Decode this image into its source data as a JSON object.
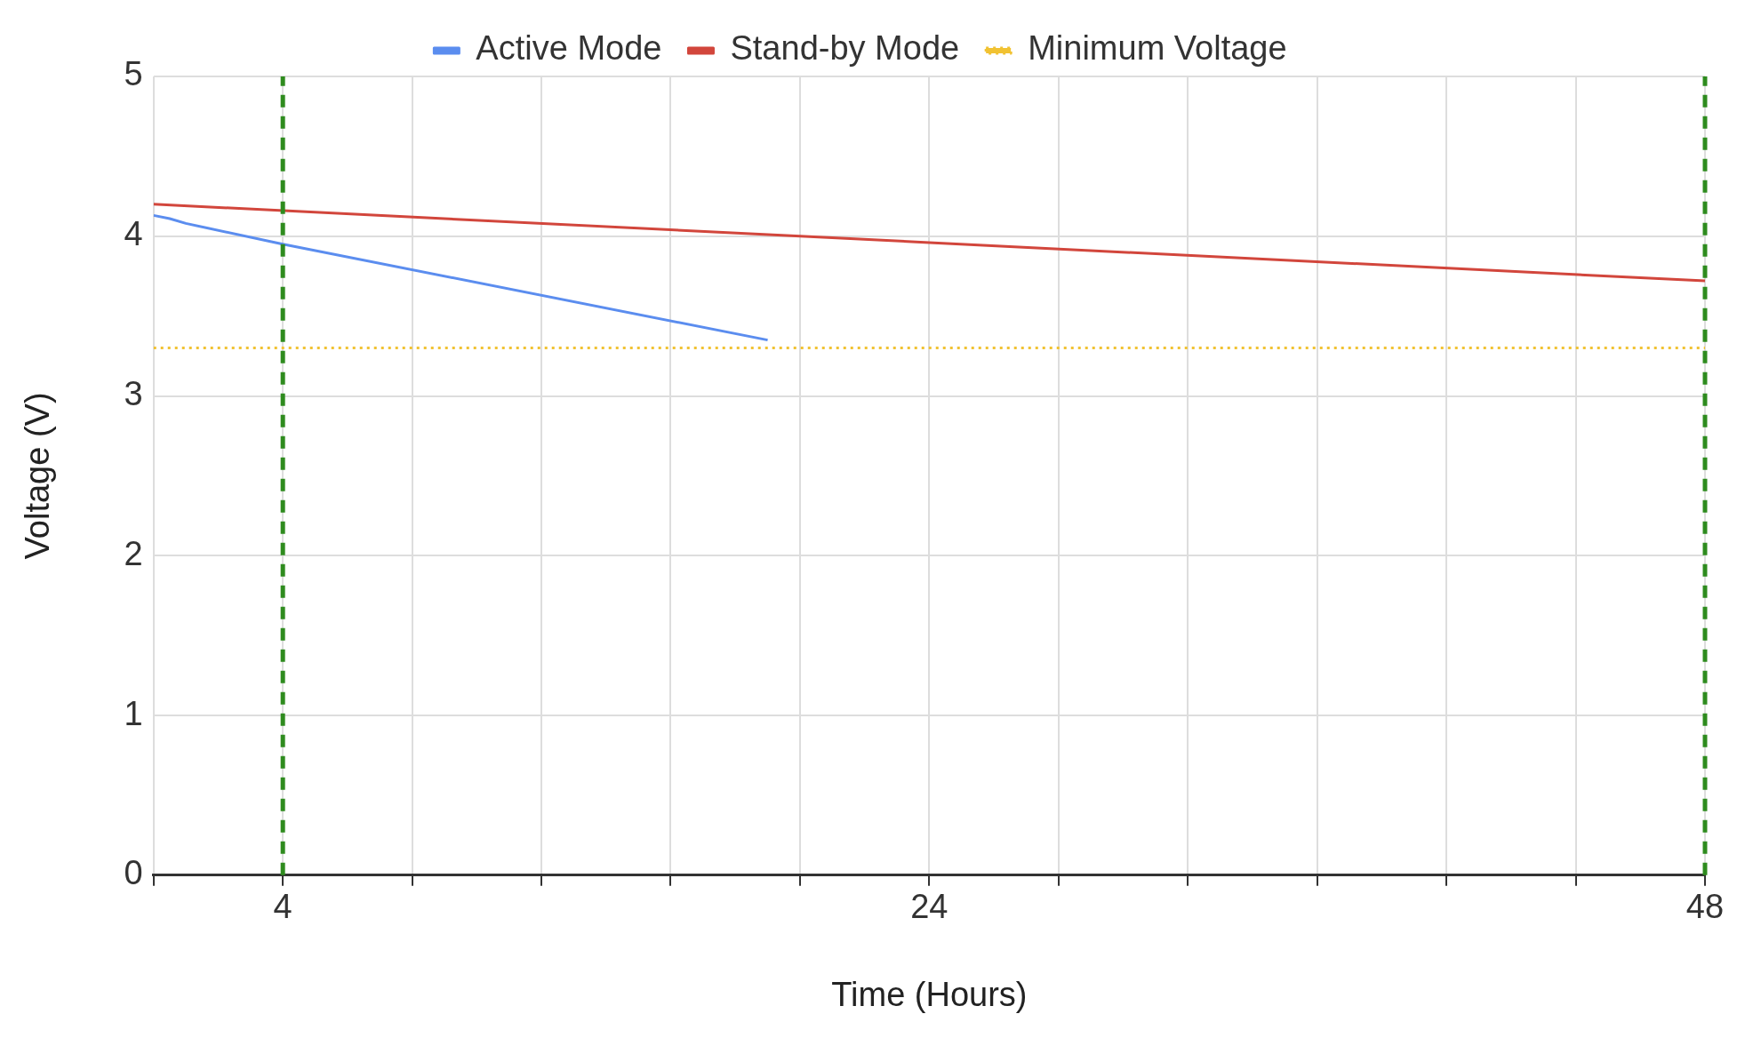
{
  "chart_data": {
    "type": "line",
    "xlabel": "Time (Hours)",
    "ylabel": "Voltage (V)",
    "xlim": [
      0,
      48
    ],
    "xticks": [
      {
        "value": 0,
        "label": null
      },
      4,
      {
        "value": 8,
        "label": null
      },
      {
        "value": 12,
        "label": null
      },
      {
        "value": 16,
        "label": null
      },
      {
        "value": 20,
        "label": null
      },
      24,
      {
        "value": 28,
        "label": null
      },
      {
        "value": 32,
        "label": null
      },
      {
        "value": 36,
        "label": null
      },
      {
        "value": 40,
        "label": null
      },
      {
        "value": 44,
        "label": null
      },
      48
    ],
    "ylim": [
      0,
      5
    ],
    "yticks": [
      0,
      1,
      2,
      3,
      4,
      5
    ],
    "grid": true,
    "legend": "top",
    "marker": "none",
    "series": [
      {
        "name": "Active Mode",
        "color": "#5b8def",
        "x": [
          0,
          0.5,
          1,
          4,
          19
        ],
        "values": [
          4.13,
          4.11,
          4.08,
          3.95,
          3.35
        ]
      },
      {
        "name": "Stand-by Mode",
        "color": "#d2463c",
        "x": [
          0,
          24,
          48
        ],
        "values": [
          4.2,
          3.96,
          3.72
        ]
      },
      {
        "name": "Minimum Voltage",
        "color": "#f1c232",
        "line_style": "dotted",
        "x": [
          0,
          48
        ],
        "values": [
          3.3,
          3.3
        ]
      }
    ],
    "ref_lines": [
      {
        "axis": "x",
        "value": 4,
        "color": "#2e8b1e",
        "line_style": "dashed"
      },
      {
        "axis": "x",
        "value": 48,
        "color": "#2e8b1e",
        "line_style": "dashed"
      }
    ]
  }
}
